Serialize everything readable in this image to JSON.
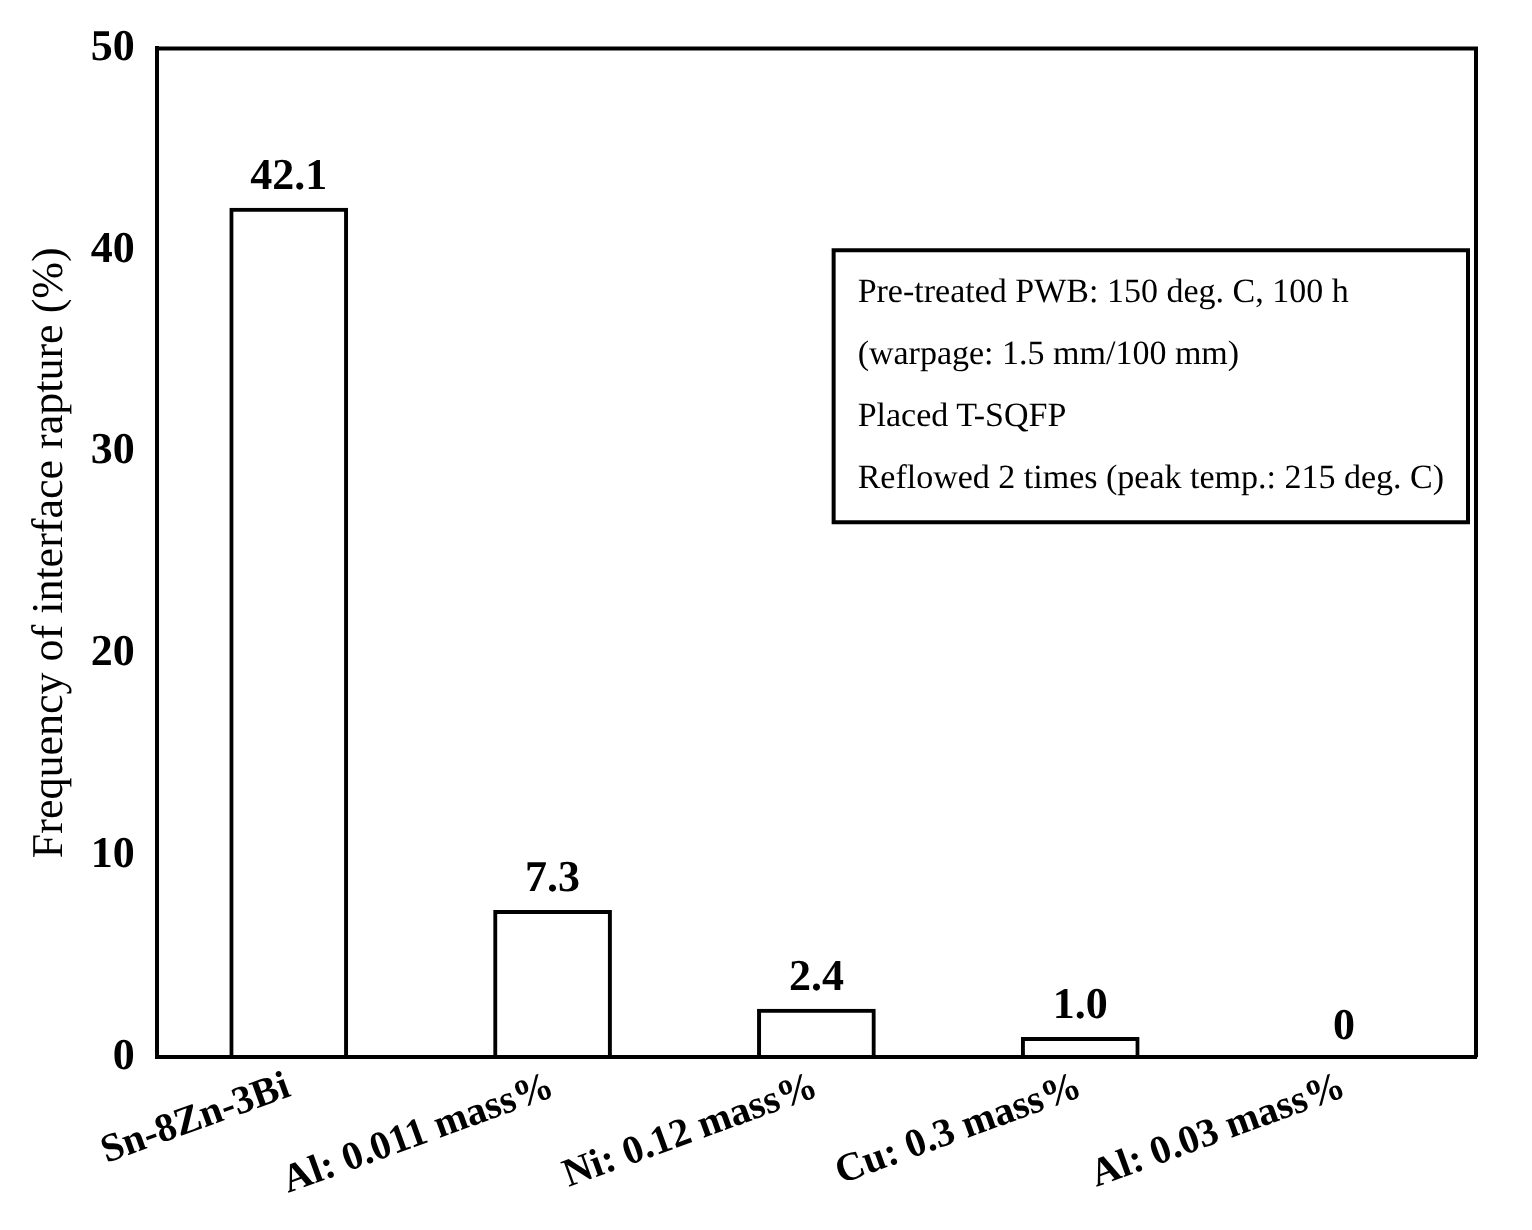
{
  "chart_data": {
    "type": "bar",
    "ylabel": "Frequency of interface rapture (%)",
    "categories": [
      "Sn-8Zn-3Bi",
      "Al: 0.011 mass%",
      "Ni: 0.12 mass%",
      "Cu: 0.3 mass%",
      "Al: 0.03 mass%"
    ],
    "values": [
      42.1,
      7.3,
      2.4,
      1.0,
      0
    ],
    "value_labels": [
      "42.1",
      "7.3",
      "2.4",
      "1.0",
      "0"
    ],
    "color": "#000000",
    "ylim": [
      0,
      50
    ],
    "yticks": [
      0,
      10,
      20,
      30,
      40,
      50
    ],
    "grid": false,
    "legend": false,
    "annotations": [
      "Pre-treated PWB: 150 deg. C, 100 h",
      "(warpage: 1.5 mm/100 mm)",
      "Placed T-SQFP",
      "Reflowed 2 times (peak temp.: 215 deg. C)"
    ]
  }
}
